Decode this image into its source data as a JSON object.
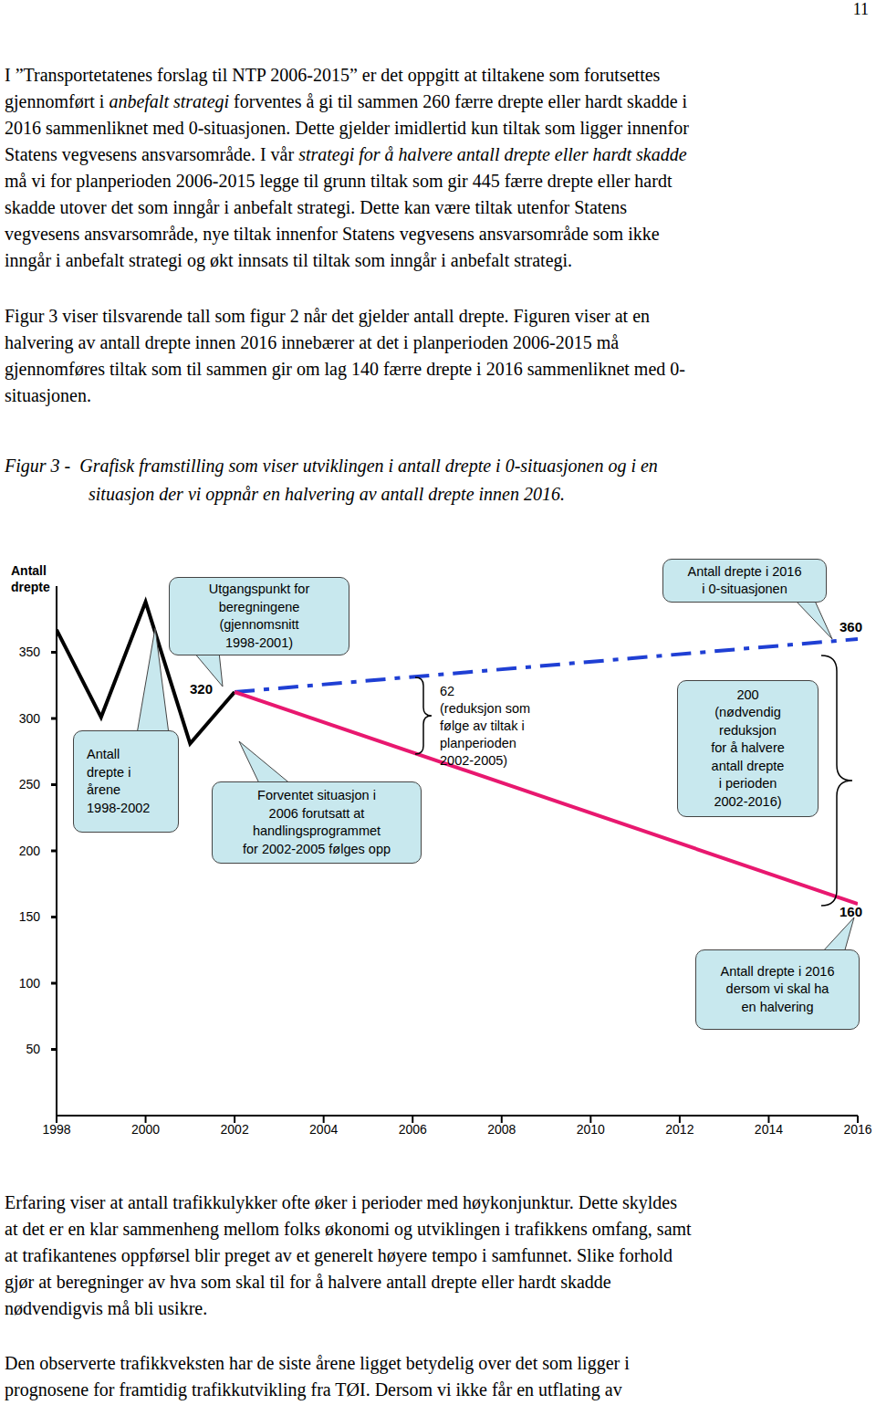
{
  "page_number": "11",
  "paragraphs_before": [
    [
      [
        "I ”Transportetatenes forslag til NTP 2006-2015” er det oppgitt at tiltakene som forutsettes"
      ],
      [
        "gjennomført i ",
        {
          "italic": "anbefalt strategi"
        },
        " forventes å gi til sammen 260 færre drepte eller hardt skadde i"
      ],
      [
        "2016 sammenliknet med 0-situasjonen. Dette gjelder imidlertid kun tiltak som ligger innenfor"
      ],
      [
        "Statens vegvesens ansvarsområde. I vår ",
        {
          "italic": "strategi for å halvere antall drepte eller hardt skadde"
        }
      ],
      [
        "må vi for planperioden 2006-2015 legge til grunn tiltak som gir 445 færre drepte eller hardt"
      ],
      [
        "skadde utover det som inngår i anbefalt strategi. Dette kan være tiltak utenfor Statens"
      ],
      [
        "vegvesens ansvarsområde, nye tiltak innenfor Statens vegvesens ansvarsområde som ikke"
      ],
      [
        "inngår i anbefalt strategi og økt innsats til tiltak som inngår i anbefalt strategi."
      ]
    ],
    [
      [
        "Figur 3 viser tilsvarende tall som figur 2 når det gjelder antall drepte. Figuren viser at en"
      ],
      [
        "halvering av antall drepte innen 2016 innebærer at det i planperioden 2006-2015 må"
      ],
      [
        "gjennomføres tiltak som til sammen gir om lag 140 færre drepte i 2016 sammenliknet med 0-"
      ],
      [
        "situasjonen."
      ]
    ]
  ],
  "figure_caption": [
    "Figur 3 -  Grafisk framstilling som viser utviklingen i antall drepte i 0-situasjonen og i en",
    "situasjon der vi oppnår en halvering av antall drepte innen 2016."
  ],
  "chart_data": {
    "type": "line",
    "y_label": "Antall drepte",
    "xlim": [
      1998,
      2016
    ],
    "xticks": [
      1998,
      2000,
      2002,
      2004,
      2006,
      2008,
      2010,
      2012,
      2014,
      2016
    ],
    "ylim": [
      0,
      400
    ],
    "yticks": [
      50,
      100,
      150,
      200,
      250,
      300,
      350
    ],
    "series": [
      {
        "color": "#000000",
        "line_style": "solid",
        "x": [
          1998,
          1999,
          2000,
          2001,
          2002
        ],
        "values": [
          367,
          301,
          388,
          281,
          320
        ]
      },
      {
        "color": "#1f3fd4",
        "line_style": "dashdot",
        "x": [
          2002,
          2016
        ],
        "values": [
          320,
          360
        ]
      },
      {
        "color": "#e8186f",
        "line_style": "solid",
        "x": [
          2002,
          2016
        ],
        "values": [
          320,
          160
        ]
      }
    ],
    "annotations": [
      {
        "lines": [
          "Utgangspunkt for",
          "beregningene",
          "(gjennomsnitt",
          "1998-2001)"
        ]
      },
      {
        "lines": [
          "Antall drepte i 2016",
          "i 0-situasjonen"
        ]
      },
      {
        "lines": [
          "360"
        ]
      },
      {
        "lines": [
          "320"
        ]
      },
      {
        "lines": [
          "Antall",
          "drepte i",
          "årene",
          "1998-2002"
        ]
      },
      {
        "lines": [
          "Forventet situasjon i",
          "2006 forutsatt at",
          "handlingsprogrammet",
          "for 2002-2005 følges opp"
        ]
      },
      {
        "lines": [
          "62",
          "(reduksjon som",
          "følge av tiltak i",
          "planperioden",
          "2002-2005)"
        ]
      },
      {
        "lines": [
          "200",
          "(nødvendig",
          "reduksjon",
          "for å halvere",
          "antall drepte",
          "i perioden",
          "2002-2016)"
        ]
      },
      {
        "lines": [
          "160"
        ]
      },
      {
        "lines": [
          "Antall drepte i 2016",
          "dersom vi skal ha",
          "en halvering"
        ]
      }
    ]
  },
  "paragraphs_after": [
    [
      [
        "Erfaring viser at antall trafikkulykker ofte øker i perioder med høykonjunktur. Dette skyldes"
      ],
      [
        "at det er en klar sammenheng mellom folks økonomi og utviklingen i trafikkens omfang, samt"
      ],
      [
        "at trafikantenes oppførsel blir preget av et generelt høyere tempo i samfunnet. Slike forhold"
      ],
      [
        "gjør at beregninger av hva som skal til for å halvere antall drepte eller hardt skadde"
      ],
      [
        "nødvendigvis må bli usikre."
      ]
    ],
    [
      [
        "Den observerte trafikkveksten har de siste årene ligget betydelig over det som ligger i"
      ],
      [
        "prognosene for framtidig trafikkutvikling fra TØI. Dersom vi ikke får en utflating av"
      ]
    ]
  ]
}
